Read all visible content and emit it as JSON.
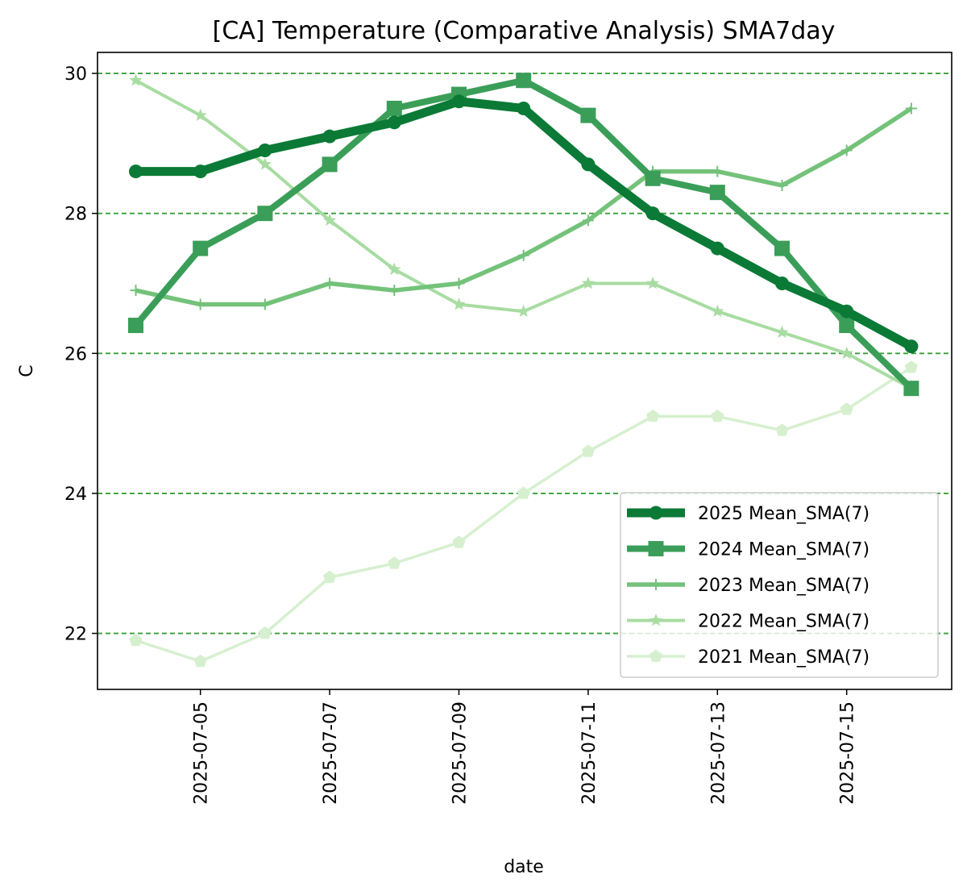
{
  "chart_data": {
    "type": "line",
    "title": "[CA] Temperature (Comparative Analysis) SMA7day",
    "xlabel": "date",
    "ylabel": "C",
    "x": [
      "2025-07-04",
      "2025-07-05",
      "2025-07-06",
      "2025-07-07",
      "2025-07-08",
      "2025-07-09",
      "2025-07-10",
      "2025-07-11",
      "2025-07-12",
      "2025-07-13",
      "2025-07-14",
      "2025-07-15",
      "2025-07-16"
    ],
    "xticks": [
      "2025-07-05",
      "2025-07-07",
      "2025-07-09",
      "2025-07-11",
      "2025-07-13",
      "2025-07-15"
    ],
    "yticks": [
      22,
      24,
      26,
      28,
      30
    ],
    "ylim": [
      21.2,
      30.3
    ],
    "grid": "horizontal dashed",
    "legend_position": "lower-right",
    "series": [
      {
        "name": "2025 Mean_SMA(7)",
        "color": "#0a7a36",
        "marker": "circle",
        "values": [
          28.6,
          28.6,
          28.9,
          29.1,
          29.3,
          29.6,
          29.5,
          28.7,
          28.0,
          27.5,
          27.0,
          26.6,
          26.1
        ]
      },
      {
        "name": "2024 Mean_SMA(7)",
        "color": "#3a9e58",
        "marker": "square",
        "values": [
          26.4,
          27.5,
          28.0,
          28.7,
          29.5,
          29.7,
          29.9,
          29.4,
          28.5,
          28.3,
          27.5,
          26.4,
          25.5
        ]
      },
      {
        "name": "2023 Mean_SMA(7)",
        "color": "#74c27a",
        "marker": "plus",
        "values": [
          26.9,
          26.7,
          26.7,
          27.0,
          26.9,
          27.0,
          27.4,
          27.9,
          28.6,
          28.6,
          28.4,
          28.9,
          29.5
        ]
      },
      {
        "name": "2022 Mean_SMA(7)",
        "color": "#a8dca2",
        "marker": "star",
        "values": [
          29.9,
          29.4,
          28.7,
          27.9,
          27.2,
          26.7,
          26.6,
          27.0,
          27.0,
          26.6,
          26.3,
          26.0,
          25.5
        ]
      },
      {
        "name": "2021 Mean_SMA(7)",
        "color": "#d6f0cf",
        "marker": "pentagon",
        "values": [
          21.9,
          21.6,
          22.0,
          22.8,
          23.0,
          23.3,
          24.0,
          24.6,
          25.1,
          25.1,
          24.9,
          25.2,
          25.8
        ]
      }
    ],
    "grid_color": "#3a9e3a"
  }
}
